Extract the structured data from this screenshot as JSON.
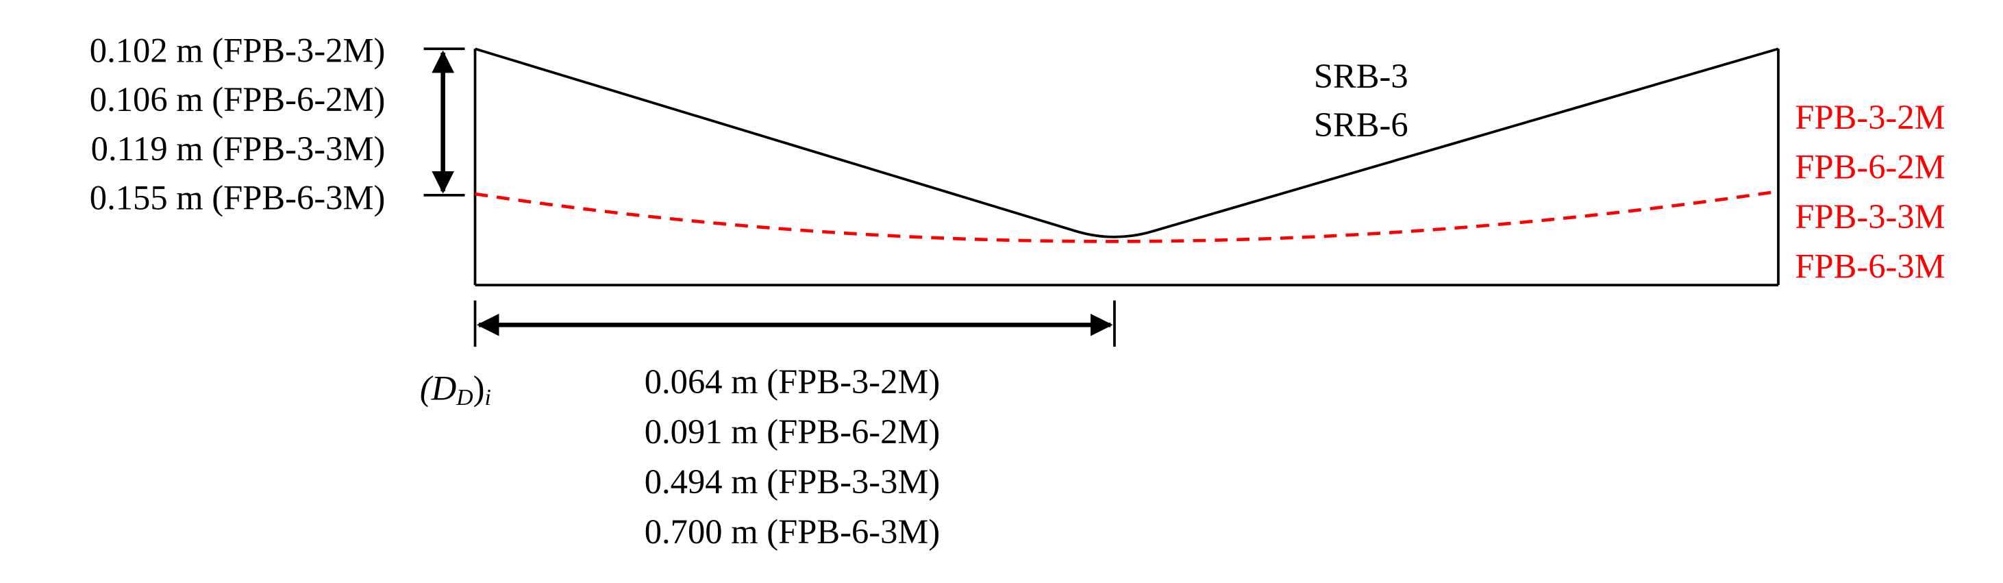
{
  "vertical_labels": [
    "0.102 m (FPB-3-2M)",
    "0.106 m (FPB-6-2M)",
    "0.119 m (FPB-3-3M)",
    "0.155 m (FPB-6-3M)"
  ],
  "horizontal_labels": [
    "0.064 m (FPB-3-2M)",
    "0.091 m (FPB-6-2M)",
    "0.494 m (FPB-3-3M)",
    "0.700 m (FPB-6-3M)"
  ],
  "displacement_symbol": {
    "open": "(D",
    "sub": "D",
    "close": ")",
    "index": "i"
  },
  "black_profile_labels": [
    "SRB-3",
    "SRB-6"
  ],
  "red_profile_labels": [
    "FPB-3-2M",
    "FPB-6-2M",
    "FPB-3-3M",
    "FPB-6-3M"
  ]
}
